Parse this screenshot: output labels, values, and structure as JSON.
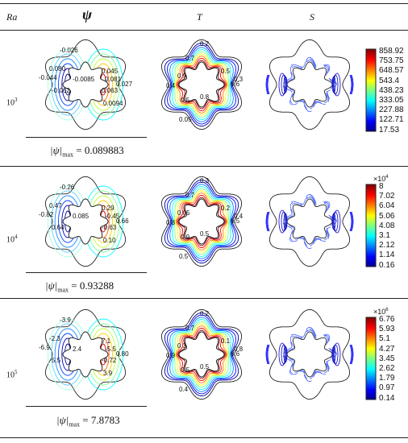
{
  "header": {
    "ra": "Ra",
    "psi": "ψ",
    "t": "T",
    "s": "S"
  },
  "rows": [
    {
      "ra_base": "10",
      "ra_exp": "3",
      "psi_max_label": "|ψ|",
      "psi_max_sub": "max",
      "psi_max_value": "= 0.089883",
      "psi_labels": [
        "-0.026",
        "0.080",
        "-0.044",
        "-0.0085",
        "-0.062",
        "0.045",
        "0.081",
        "0.063",
        "0.027",
        "0.0094"
      ],
      "t_labels": [
        "0.2",
        "0.7",
        "0.9",
        "0.4",
        "0.5",
        "0.3",
        "0.6",
        "0.8",
        "0.5",
        "0.05"
      ],
      "colorbar": {
        "exponent_base": "",
        "exponent": "",
        "ticks": [
          "858.92",
          "753.75",
          "648.57",
          "543.4",
          "438.23",
          "333.05",
          "227.88",
          "122.71",
          "17.53"
        ]
      }
    },
    {
      "ra_base": "10",
      "ra_exp": "4",
      "psi_max_label": "|ψ|",
      "psi_max_sub": "max",
      "psi_max_value": "= 0.93288",
      "psi_labels": [
        "-0.26",
        "0.47",
        "-0.82",
        "0.085",
        "0.64",
        "0.29",
        "-0.45",
        "-0.63",
        "0.66",
        "0.10"
      ],
      "t_labels": [
        "0.3",
        "0.7",
        "0.05",
        "0.8",
        "0.9",
        "0.4",
        "0.5",
        "0.5",
        "0.2",
        "0.5"
      ],
      "colorbar": {
        "exponent_base": "×10",
        "exponent": "4",
        "ticks": [
          "8",
          "7.02",
          "6.04",
          "5.06",
          "4.08",
          "3.1",
          "2.12",
          "1.14",
          "0.16"
        ]
      }
    },
    {
      "ra_base": "10",
      "ra_exp": "5",
      "psi_max_label": "|ψ|",
      "psi_max_sub": "max",
      "psi_max_value": "= 7.8783",
      "psi_labels": [
        "-3.9",
        "-2.3",
        "-6.9",
        "2.4",
        "5.5",
        "7.1",
        "-5.5",
        "-0.72",
        "0.80",
        "3.9"
      ],
      "t_labels": [
        "0.2",
        "0.7",
        "0.3",
        "0.9",
        "0.5",
        "0.8",
        "0.6",
        "0.5",
        "0.1",
        "0.4"
      ],
      "colorbar": {
        "exponent_base": "×10",
        "exponent": "6",
        "ticks": [
          "6.76",
          "5.93",
          "5.1",
          "4.27",
          "3.45",
          "2.62",
          "1.79",
          "0.97",
          "0.14"
        ]
      }
    }
  ]
}
